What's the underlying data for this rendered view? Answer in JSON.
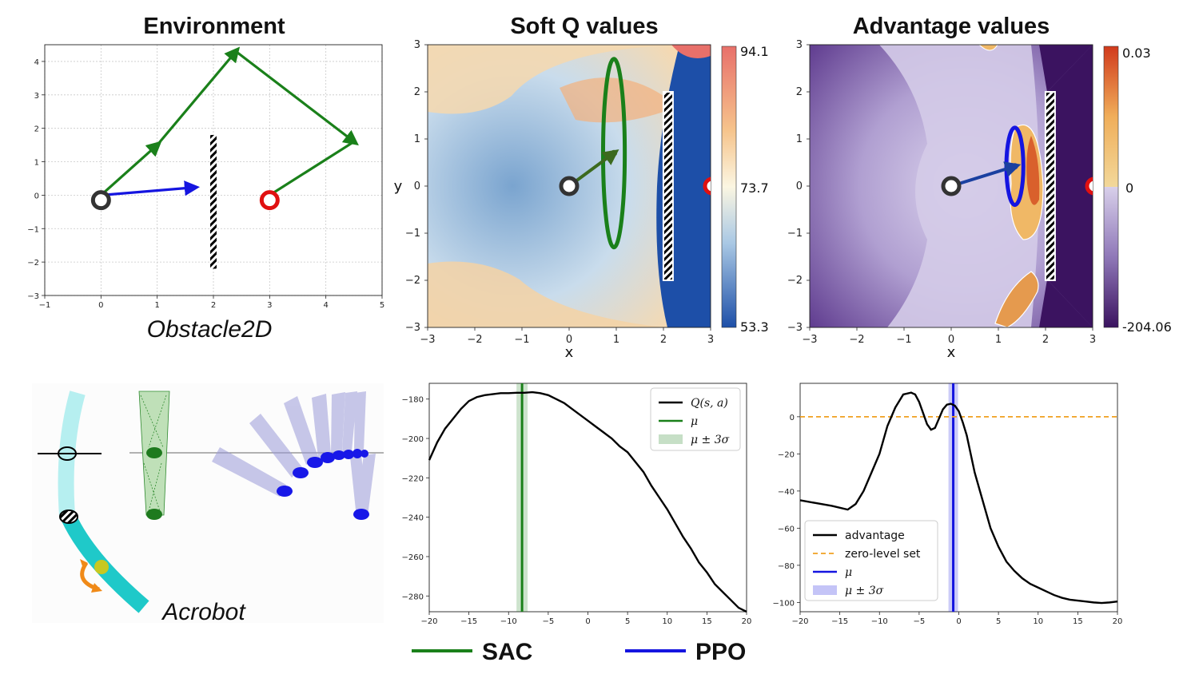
{
  "titles": {
    "environment": "Environment",
    "soft_q": "Soft Q values",
    "advantage": "Advantage values"
  },
  "labels": {
    "obstacle": "Obstacle2D",
    "acrobot": "Acrobot"
  },
  "colors": {
    "sac": "#1a801a",
    "ppo": "#1515e0",
    "start_marker": "#333333",
    "goal_marker": "#e01010",
    "zero_level": "#f0a020"
  },
  "bottom_legend": [
    {
      "name": "SAC",
      "color": "#1a801a"
    },
    {
      "name": "PPO",
      "color": "#1515e0"
    }
  ],
  "chart_data": [
    {
      "id": "environment",
      "type": "line",
      "xlim": [
        -1,
        5
      ],
      "ylim": [
        -3,
        4.5
      ],
      "xticks": [
        -1,
        0,
        1,
        2,
        3,
        4,
        5
      ],
      "yticks": [
        -3,
        -2,
        -1,
        0,
        1,
        2,
        3,
        4
      ],
      "grid": true,
      "series": [
        {
          "color": "sac",
          "points": [
            [
              0,
              0
            ],
            [
              1,
              1.5
            ],
            [
              2.4,
              4.3
            ],
            [
              4.5,
              1.6
            ],
            [
              3,
              0
            ]
          ]
        },
        {
          "color": "ppo",
          "points": [
            [
              0,
              0
            ],
            [
              1.65,
              0.23
            ]
          ]
        }
      ],
      "obstacle": {
        "x": 2,
        "y_range": [
          -2.2,
          1.8
        ]
      },
      "start": [
        0,
        -0.15
      ],
      "goal": [
        3,
        -0.15
      ]
    },
    {
      "id": "soft_q",
      "type": "heatmap",
      "xlabel": "x",
      "ylabel": "y",
      "xlim": [
        -3,
        3
      ],
      "ylim": [
        -3,
        3
      ],
      "xticks": [
        -3,
        -2,
        -1,
        0,
        1,
        2,
        3
      ],
      "yticks": [
        -3,
        -2,
        -1,
        0,
        1,
        2,
        3
      ],
      "colorbar": {
        "max": "94.1",
        "mid": "73.7",
        "min": "53.3",
        "colormap": "RdYlBu_r"
      },
      "start": [
        0,
        0
      ],
      "action_arrow": [
        [
          0,
          0
        ],
        [
          0.95,
          0.7
        ]
      ],
      "policy_ellipse": {
        "center": [
          0.95,
          0.7
        ],
        "rx": 0.23,
        "ry": 2.0,
        "color": "sac"
      },
      "obstacle": {
        "x": 2.1,
        "y_range": [
          -2,
          2
        ]
      }
    },
    {
      "id": "advantage",
      "type": "heatmap",
      "xlabel": "x",
      "xlim": [
        -3,
        3
      ],
      "ylim": [
        -3,
        3
      ],
      "xticks": [
        -3,
        -2,
        -1,
        0,
        1,
        2,
        3
      ],
      "yticks": [
        -3,
        -2,
        -1,
        0,
        1,
        2,
        3
      ],
      "colorbar": {
        "max": "0.03",
        "mid": "0",
        "min": "-204.06",
        "colormap": "PuOr"
      },
      "start": [
        0,
        0
      ],
      "action_arrow": [
        [
          0,
          0
        ],
        [
          1.35,
          0.42
        ]
      ],
      "policy_ellipse": {
        "center": [
          1.35,
          0.42
        ],
        "rx": 0.18,
        "ry": 0.82,
        "color": "ppo"
      },
      "obstacle": {
        "x": 2.1,
        "y_range": [
          -2,
          2
        ]
      }
    },
    {
      "id": "q_curve",
      "type": "line",
      "xlim": [
        -20,
        20
      ],
      "ylim": [
        -288,
        -172
      ],
      "xticks": [
        -20,
        -15,
        -10,
        -5,
        0,
        5,
        10,
        15,
        20
      ],
      "yticks": [
        -180,
        -200,
        -220,
        -240,
        -260,
        -280
      ],
      "grid": false,
      "series": [
        {
          "name": "Q(s, a)",
          "color": "#000000",
          "x": [
            -20,
            -19,
            -18,
            -17,
            -16,
            -15,
            -14,
            -13,
            -12,
            -11,
            -10,
            -9,
            -8,
            -7,
            -6,
            -5,
            -4,
            -3,
            -2,
            -1,
            0,
            1,
            2,
            3,
            4,
            5,
            6,
            7,
            8,
            9,
            10,
            11,
            12,
            13,
            14,
            15,
            16,
            17,
            18,
            19,
            20
          ],
          "y": [
            -211,
            -202,
            -195,
            -190,
            -185,
            -181,
            -179,
            -178,
            -177.5,
            -177,
            -177,
            -176.8,
            -176.8,
            -176.5,
            -177,
            -178,
            -180,
            -182,
            -185,
            -188,
            -191,
            -194,
            -197,
            -200,
            -204,
            -207,
            -212,
            -217,
            -224,
            -230,
            -236,
            -243,
            -250,
            -256,
            -263,
            -268,
            -274,
            -278,
            -282,
            -286,
            -288
          ]
        }
      ],
      "mu": -8.3,
      "sigma3": [
        -9.0,
        -7.6
      ],
      "mu_color": "sac",
      "legend": [
        {
          "label": "Q(s, a)",
          "kind": "line",
          "color": "#000000"
        },
        {
          "label": "μ",
          "kind": "line",
          "color": "sac"
        },
        {
          "label": "μ ± 3σ",
          "kind": "band",
          "color": "sac"
        }
      ]
    },
    {
      "id": "advantage_curve",
      "type": "line",
      "xlim": [
        -20,
        20
      ],
      "ylim": [
        -105,
        18
      ],
      "xticks": [
        -20,
        -15,
        -10,
        -5,
        0,
        5,
        10,
        15,
        20
      ],
      "yticks": [
        0,
        -20,
        -40,
        -60,
        -80,
        -100
      ],
      "grid": false,
      "series": [
        {
          "name": "advantage",
          "color": "#000000",
          "x": [
            -20,
            -18,
            -16,
            -14,
            -13,
            -12,
            -11,
            -10,
            -9,
            -8,
            -7,
            -6,
            -5.5,
            -5,
            -4.5,
            -4,
            -3.5,
            -3,
            -2.5,
            -2,
            -1.5,
            -1,
            -0.5,
            0,
            0.5,
            1,
            1.5,
            2,
            3,
            4,
            5,
            6,
            7,
            8,
            9,
            10,
            11,
            12,
            13,
            14,
            15,
            16,
            17,
            18,
            19,
            20
          ],
          "y": [
            -45,
            -46.5,
            -48,
            -50,
            -47,
            -40,
            -30,
            -20,
            -5,
            5,
            12,
            13,
            12,
            8,
            2,
            -4,
            -7,
            -6,
            -1,
            4,
            6.5,
            7,
            6,
            3,
            -3,
            -10,
            -20,
            -30,
            -45,
            -60,
            -70,
            -78,
            -83,
            -87,
            -90,
            -92,
            -94,
            -96,
            -97.5,
            -98.5,
            -99,
            -99.5,
            -100,
            -100.3,
            -100,
            -99.5
          ]
        }
      ],
      "zero_level": 0,
      "mu": -0.7,
      "sigma3": [
        -1.3,
        -0.1
      ],
      "mu_color": "ppo",
      "legend": [
        {
          "label": "advantage",
          "kind": "line",
          "color": "#000000"
        },
        {
          "label": "zero-level set",
          "kind": "dash",
          "color": "zero_level"
        },
        {
          "label": "μ",
          "kind": "line",
          "color": "ppo"
        },
        {
          "label": "μ ± 3σ",
          "kind": "band",
          "color": "ppo"
        }
      ]
    }
  ]
}
